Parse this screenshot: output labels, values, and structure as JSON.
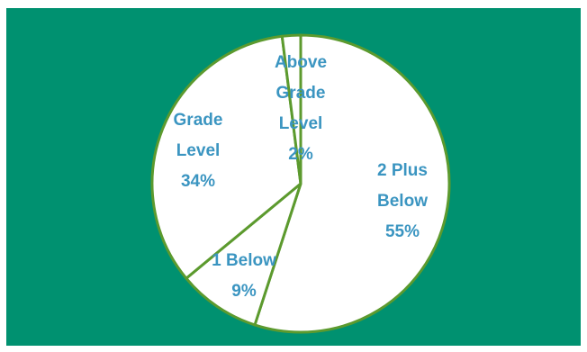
{
  "chart_data": {
    "type": "pie",
    "title": "",
    "categories": [
      "2 Plus Below",
      "1 Below",
      "Grade Level",
      "Above Grade Level"
    ],
    "values": [
      55,
      9,
      34,
      2
    ],
    "labels": [
      {
        "lines": [
          "2 Plus",
          "Below"
        ],
        "percent": "55%"
      },
      {
        "lines": [
          "1 Below"
        ],
        "percent": "9%"
      },
      {
        "lines": [
          "Grade",
          "Level"
        ],
        "percent": "34%"
      },
      {
        "lines": [
          "Above",
          "Grade",
          "Level"
        ],
        "percent": "2%"
      }
    ],
    "legend": "none",
    "colors": {
      "background": "#009170",
      "slice_fill": "#ffffff",
      "slice_border": "#5c9a2e",
      "label_text": "#3b95c1"
    }
  }
}
